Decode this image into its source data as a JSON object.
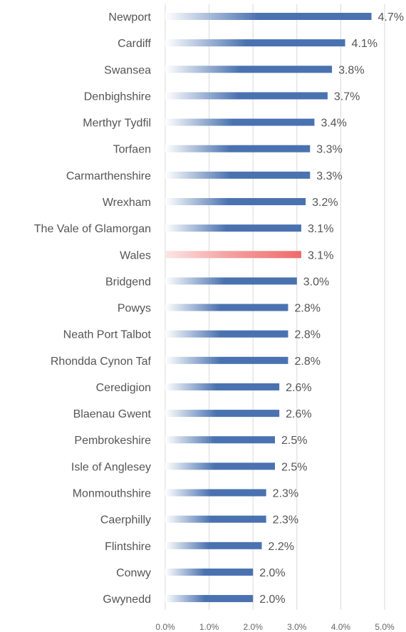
{
  "chart_data": {
    "type": "bar",
    "orientation": "horizontal",
    "categories": [
      "Newport",
      "Cardiff",
      "Swansea",
      "Denbighshire",
      "Merthyr Tydfil",
      "Torfaen",
      "Carmarthenshire",
      "Wrexham",
      "The Vale of Glamorgan",
      "Wales",
      "Bridgend",
      "Powys",
      "Neath Port Talbot",
      "Rhondda Cynon Taf",
      "Ceredigion",
      "Blaenau Gwent",
      "Pembrokeshire",
      "Isle of Anglesey",
      "Monmouthshire",
      "Caerphilly",
      "Flintshire",
      "Conwy",
      "Gwynedd"
    ],
    "values": [
      4.7,
      4.1,
      3.8,
      3.7,
      3.4,
      3.3,
      3.3,
      3.2,
      3.1,
      3.1,
      3.0,
      2.8,
      2.8,
      2.8,
      2.6,
      2.6,
      2.5,
      2.5,
      2.3,
      2.3,
      2.2,
      2.0,
      2.0
    ],
    "value_labels": [
      "4.7%",
      "4.1%",
      "3.8%",
      "3.7%",
      "3.4%",
      "3.3%",
      "3.3%",
      "3.2%",
      "3.1%",
      "3.1%",
      "3.0%",
      "2.8%",
      "2.8%",
      "2.8%",
      "2.6%",
      "2.6%",
      "2.5%",
      "2.5%",
      "2.3%",
      "2.3%",
      "2.2%",
      "2.0%",
      "2.0%"
    ],
    "xlim": [
      0,
      5
    ],
    "xticks": [
      0,
      1,
      2,
      3,
      4,
      5
    ],
    "xtick_labels": [
      "0.0%",
      "1.0%",
      "2.0%",
      "3.0%",
      "4.0%",
      "5.0%"
    ],
    "highlight_category": "Wales",
    "grid": true,
    "legend": "none",
    "colors": {
      "bar": "#4a72b0",
      "bar_fade": "#ffffff",
      "highlight": "#f06a6a",
      "grid": "#d9d9d9",
      "text": "#555555"
    }
  }
}
